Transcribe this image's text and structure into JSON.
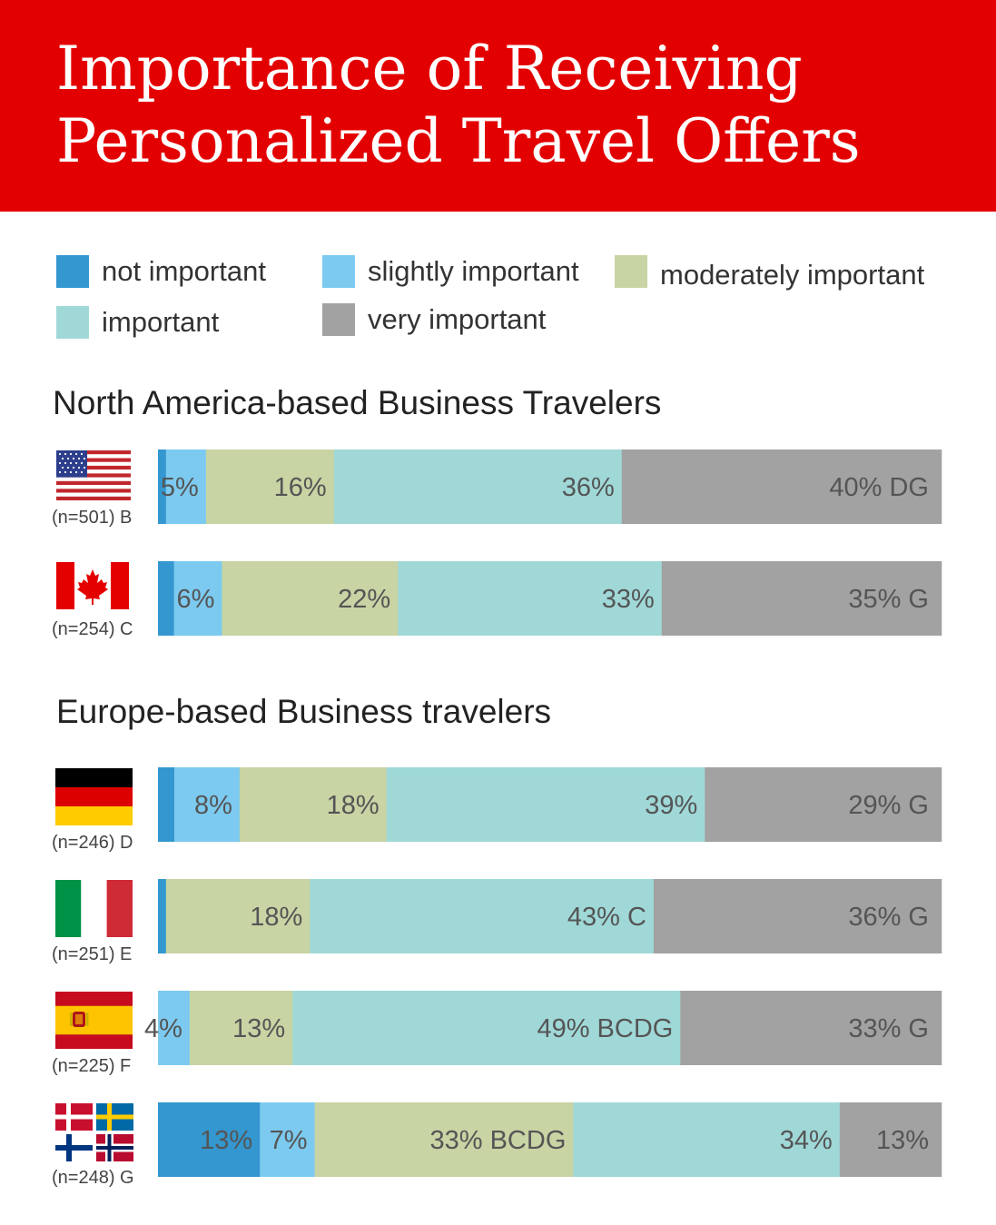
{
  "title": {
    "line1": "Importance of Receiving",
    "line2": "Personalized Travel Offers"
  },
  "colors": {
    "header": "#e30000",
    "not_important": "#3497cf",
    "slightly_important": "#7ccaf0",
    "moderately_important": "#c8d4a4",
    "important": "#a0d8d8",
    "very_important": "#a2a2a2"
  },
  "legend": [
    {
      "key": "not_important",
      "label": "not important"
    },
    {
      "key": "slightly_important",
      "label": "slightly important"
    },
    {
      "key": "moderately_important",
      "label": "moderately important"
    },
    {
      "key": "important",
      "label": "important"
    },
    {
      "key": "very_important",
      "label": "very important"
    }
  ],
  "chart_data": {
    "type": "bar",
    "orientation": "horizontal",
    "stacked": true,
    "normalized": true,
    "series_order": [
      "not important",
      "slightly important",
      "moderately important",
      "important",
      "very important"
    ],
    "groups": [
      {
        "title": "North America-based Business Travelers",
        "rows": [
          {
            "flag": "usa-flag-icon",
            "label": "(n=501) B",
            "values": [
              1,
              5,
              16,
              36,
              40
            ],
            "segment_labels": [
              "",
              "5%",
              "16%",
              "36%",
              "40% DG"
            ]
          },
          {
            "flag": "canada-flag-icon",
            "label": "(n=254) C",
            "values": [
              2,
              6,
              22,
              33,
              35
            ],
            "segment_labels": [
              "",
              "6%",
              "22%",
              "33%",
              "35% G"
            ]
          }
        ]
      },
      {
        "title": "Europe-based Business travelers",
        "rows": [
          {
            "flag": "germany-flag-icon",
            "label": "(n=246) D",
            "values": [
              2,
              8,
              18,
              39,
              29
            ],
            "segment_labels": [
              "",
              "8%",
              "18%",
              "39%",
              "29% G"
            ]
          },
          {
            "flag": "italy-flag-icon",
            "label": "(n=251) E",
            "values": [
              1,
              0,
              18,
              43,
              36
            ],
            "segment_labels": [
              "",
              "",
              "18%",
              "43% C",
              "36% G"
            ]
          },
          {
            "flag": "spain-flag-icon",
            "label": "(n=225) F",
            "values": [
              0,
              4,
              13,
              49,
              33
            ],
            "segment_labels": [
              "",
              "4%",
              "13%",
              "49% BCDG",
              "33% G"
            ]
          },
          {
            "flag": "nordic-flags-icon",
            "label": "(n=248) G",
            "values": [
              13,
              7,
              33,
              34,
              13
            ],
            "segment_labels": [
              "13%",
              "7%",
              "33% BCDG",
              "34%",
              "13%"
            ]
          }
        ]
      }
    ]
  }
}
